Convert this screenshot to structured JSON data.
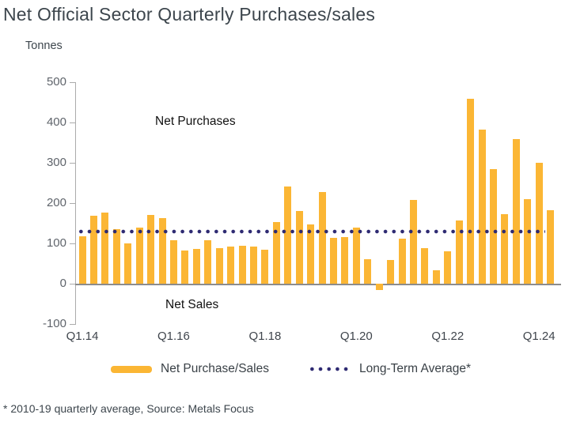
{
  "title": "Net Official Sector Quarterly Purchases/sales",
  "y_axis": {
    "units": "Tonnes",
    "ticks": [
      500,
      400,
      300,
      200,
      100,
      0,
      -100
    ]
  },
  "annotations": {
    "net_purchases": "Net Purchases",
    "net_sales": "Net Sales"
  },
  "legend": {
    "bars_label": "Net Purchase/Sales",
    "line_label": "Long-Term Average*"
  },
  "footnote": "* 2010-19 quarterly average, Source: Metals Focus",
  "colors": {
    "bar": "#FBB634",
    "average_line": "#2E2A72",
    "title_text": "#3D464D"
  },
  "chart_data": {
    "type": "bar",
    "title": "Net Official Sector Quarterly Purchases/sales",
    "xlabel": "",
    "ylabel": "Tonnes",
    "ylim": [
      -100,
      500
    ],
    "grid": false,
    "legend_position": "bottom",
    "categories": [
      "Q1.14",
      "Q2.14",
      "Q3.14",
      "Q4.14",
      "Q1.15",
      "Q2.15",
      "Q3.15",
      "Q4.15",
      "Q1.16",
      "Q2.16",
      "Q3.16",
      "Q4.16",
      "Q1.17",
      "Q2.17",
      "Q3.17",
      "Q4.17",
      "Q1.18",
      "Q2.18",
      "Q3.18",
      "Q4.18",
      "Q1.19",
      "Q2.19",
      "Q3.19",
      "Q4.19",
      "Q1.20",
      "Q2.20",
      "Q3.20",
      "Q4.20",
      "Q1.21",
      "Q2.21",
      "Q3.21",
      "Q4.21",
      "Q1.22",
      "Q2.22",
      "Q3.22",
      "Q4.22",
      "Q1.23",
      "Q2.23",
      "Q3.23",
      "Q4.23",
      "Q1.24",
      "Q2.24"
    ],
    "series": [
      {
        "name": "Net Purchase/Sales",
        "values": [
          118,
          168,
          176,
          136,
          100,
          140,
          170,
          162,
          108,
          82,
          87,
          107,
          89,
          93,
          95,
          92,
          84,
          152,
          242,
          180,
          148,
          228,
          114,
          116,
          140,
          61,
          -16,
          59,
          112,
          207,
          88,
          33,
          80,
          156,
          458,
          382,
          285,
          172,
          358,
          210,
          300,
          183
        ]
      },
      {
        "name": "Long-Term Average*",
        "type": "dotted-hline",
        "value": 130
      }
    ],
    "x_tick_labels": [
      "Q1.14",
      "Q1.16",
      "Q1.18",
      "Q1.20",
      "Q1.22",
      "Q1.24"
    ],
    "y_tick_labels": [
      500,
      400,
      300,
      200,
      100,
      0,
      -100
    ]
  }
}
